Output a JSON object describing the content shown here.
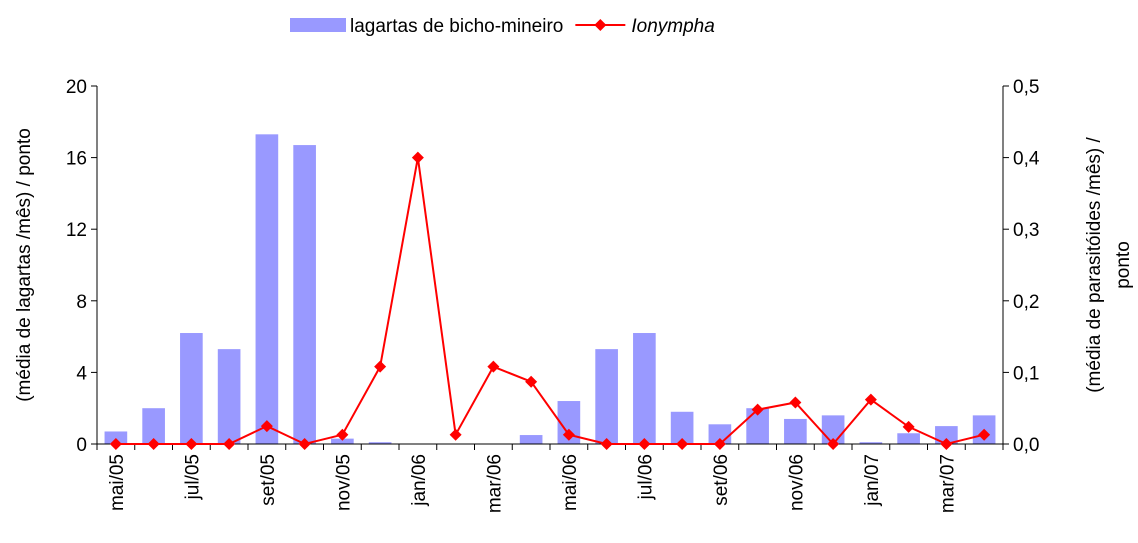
{
  "chart_data": {
    "type": "bar_line",
    "categories": [
      "mai/05",
      null,
      "jul/05",
      null,
      "set/05",
      null,
      "nov/05",
      null,
      "jan/06",
      null,
      "mar/06",
      null,
      "mai/06",
      null,
      "jul/06",
      null,
      "set/06",
      null,
      "nov/06",
      null,
      "jan/07",
      null,
      "mar/07",
      null
    ],
    "series": [
      {
        "name": "lagartas de bicho-mineiro",
        "color": "#9999ff",
        "type": "bar",
        "values": [
          0.7,
          2.0,
          6.2,
          5.3,
          17.3,
          16.7,
          0.3,
          0.1,
          0,
          0,
          0,
          0.5,
          2.4,
          5.3,
          6.2,
          1.8,
          1.1,
          2.0,
          1.4,
          1.6,
          0.1,
          0.6,
          1.0,
          1.6
        ]
      },
      {
        "name": "Ionympha",
        "color": "#ff0000",
        "type": "line",
        "axis": "y2",
        "values": [
          0,
          0,
          0,
          0,
          0.025,
          0,
          0.013,
          0.108,
          0.4,
          0.013,
          0.108,
          0.087,
          0.013,
          0,
          0,
          0,
          0,
          0.048,
          0.058,
          0,
          0.062,
          0.024,
          0,
          0.013
        ]
      }
    ],
    "ylabel": "(média de lagartas /mês) / ponto",
    "y2label": [
      "(média de parasitóides /mês) /",
      "ponto"
    ],
    "ylim": [
      0,
      20
    ],
    "yticks": [
      0,
      4,
      8,
      12,
      16,
      20
    ],
    "y2lim": [
      0,
      0.5
    ],
    "y2ticks": [
      {
        "value": 0,
        "label": "0,0"
      },
      {
        "value": 0.1,
        "label": "0,1"
      },
      {
        "value": 0.2,
        "label": "0,2"
      },
      {
        "value": 0.3,
        "label": "0,3"
      },
      {
        "value": 0.4,
        "label": "0,4"
      },
      {
        "value": 0.5,
        "label": "0,5"
      }
    ],
    "legend": "top"
  }
}
